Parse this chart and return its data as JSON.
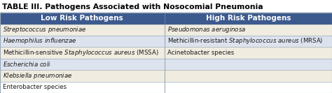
{
  "title": "TABLE III. Pathogens Associated with Nosocomial Pneumonia",
  "header_left": "Low Risk Pathogens",
  "header_right": "High Risk Pathogens",
  "header_bg": "#3d5a8e",
  "header_text_color": "#ffffff",
  "row_bg_cream": "#f0ece0",
  "row_bg_light_blue": "#dde3ee",
  "row_bg_white": "#ffffff",
  "border_color": "#9aabb8",
  "title_color": "#000000",
  "col_split": 0.495,
  "title_fontsize": 7.8,
  "header_fontsize": 7.5,
  "cell_fontsize": 6.2
}
